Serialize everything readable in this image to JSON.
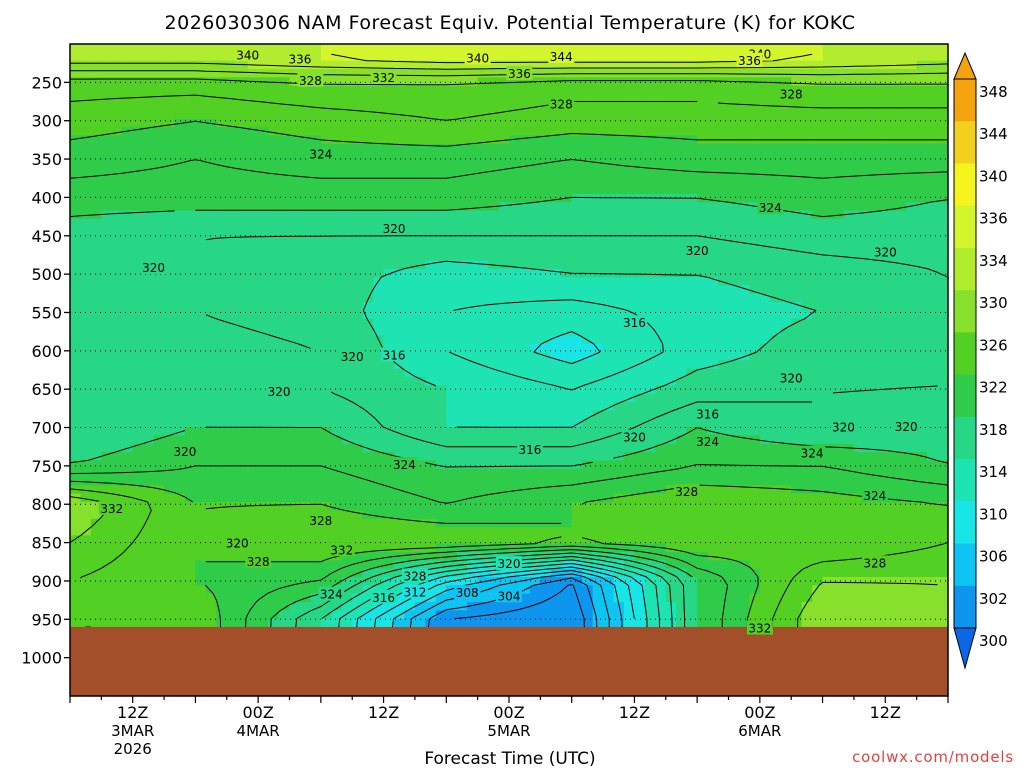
{
  "chart_data": {
    "type": "heatmap",
    "title": "2026030306 NAM Forecast Equiv. Potential Temperature (K) for KOKC",
    "xlabel": "Forecast Time (UTC)",
    "ylabel": "",
    "x_ticks": [
      {
        "hour": 6,
        "line1": "12Z",
        "line2": "3MAR",
        "line3": "2026"
      },
      {
        "hour": 18,
        "line1": "00Z",
        "line2": "4MAR",
        "line3": ""
      },
      {
        "hour": 30,
        "line1": "12Z",
        "line2": "",
        "line3": ""
      },
      {
        "hour": 42,
        "line1": "00Z",
        "line2": "5MAR",
        "line3": ""
      },
      {
        "hour": 54,
        "line1": "12Z",
        "line2": "",
        "line3": ""
      },
      {
        "hour": 66,
        "line1": "00Z",
        "line2": "6MAR",
        "line3": ""
      },
      {
        "hour": 78,
        "line1": "12Z",
        "line2": "",
        "line3": ""
      }
    ],
    "xlim_hours": [
      0,
      84
    ],
    "y_ticks": [
      250,
      300,
      350,
      400,
      450,
      500,
      550,
      600,
      650,
      700,
      750,
      800,
      850,
      900,
      950,
      1000
    ],
    "ylim_hpa": [
      200,
      1050
    ],
    "ground_hpa": 960,
    "colorbar": {
      "labels": [
        348,
        344,
        340,
        336,
        334,
        330,
        326,
        322,
        318,
        314,
        310,
        306,
        302,
        300
      ],
      "colors": [
        "#f5a30d",
        "#f2d020",
        "#f5f51d",
        "#d3f52d",
        "#b1ec2f",
        "#86e02c",
        "#52d023",
        "#2fcc4a",
        "#27d785",
        "#1ee3b3",
        "#18e6e6",
        "#0ec4f2",
        "#0e95ee",
        "#0a68e8"
      ]
    },
    "levels": {
      "pressure_hpa": [
        220,
        250,
        300,
        350,
        400,
        450,
        500,
        550,
        600,
        650,
        700,
        750,
        800,
        850,
        900,
        950
      ],
      "hours": [
        0,
        12,
        24,
        36,
        48,
        60,
        72,
        84
      ],
      "theta_e_K": [
        [
          335,
          335,
          336,
          337,
          337,
          337,
          336,
          335
        ],
        [
          329,
          329,
          330,
          330,
          329,
          329,
          330,
          330
        ],
        [
          327,
          326,
          327,
          328,
          327,
          327,
          327,
          327
        ],
        [
          325,
          324,
          325,
          325,
          324,
          325,
          325,
          325
        ],
        [
          323,
          323,
          323,
          323,
          322,
          322,
          323,
          322
        ],
        [
          321,
          320,
          320,
          320,
          320,
          320,
          321,
          321
        ],
        [
          320,
          320,
          319,
          317,
          318,
          318,
          319,
          320
        ],
        [
          320,
          320,
          319,
          316,
          315,
          317,
          318,
          320
        ],
        [
          320,
          321,
          320,
          316,
          313,
          317,
          319,
          320
        ],
        [
          320,
          322,
          320,
          318,
          316,
          319,
          320,
          320
        ],
        [
          320,
          322,
          322,
          318,
          318,
          322,
          320,
          321
        ],
        [
          322,
          324,
          324,
          322,
          322,
          324,
          324,
          322
        ],
        [
          332,
          326,
          326,
          324,
          326,
          328,
          327,
          326
        ],
        [
          330,
          326,
          328,
          328,
          326,
          328,
          326,
          328
        ],
        [
          328,
          326,
          324,
          312,
          304,
          322,
          330,
          330
        ],
        [
          328,
          328,
          318,
          304,
          302,
          322,
          332,
          330
        ]
      ]
    },
    "contour_labels": [
      {
        "text": "340",
        "hour": 17,
        "hpa": 215
      },
      {
        "text": "336",
        "hour": 22,
        "hpa": 220
      },
      {
        "text": "340",
        "hour": 39,
        "hpa": 219
      },
      {
        "text": "344",
        "hour": 47,
        "hpa": 217
      },
      {
        "text": "340",
        "hour": 66,
        "hpa": 214
      },
      {
        "text": "336",
        "hour": 65,
        "hpa": 222
      },
      {
        "text": "336",
        "hour": 43,
        "hpa": 239
      },
      {
        "text": "332",
        "hour": 30,
        "hpa": 244
      },
      {
        "text": "328",
        "hour": 23,
        "hpa": 248
      },
      {
        "text": "328",
        "hour": 47,
        "hpa": 279
      },
      {
        "text": "328",
        "hour": 69,
        "hpa": 266
      },
      {
        "text": "324",
        "hour": 24,
        "hpa": 344
      },
      {
        "text": "324",
        "hour": 67,
        "hpa": 414
      },
      {
        "text": "320",
        "hour": 31,
        "hpa": 441
      },
      {
        "text": "320",
        "hour": 60,
        "hpa": 470
      },
      {
        "text": "320",
        "hour": 78,
        "hpa": 472
      },
      {
        "text": "320",
        "hour": 8,
        "hpa": 492
      },
      {
        "text": "316",
        "hour": 54,
        "hpa": 564
      },
      {
        "text": "320",
        "hour": 27,
        "hpa": 608
      },
      {
        "text": "316",
        "hour": 31,
        "hpa": 606
      },
      {
        "text": "320",
        "hour": 20,
        "hpa": 654
      },
      {
        "text": "320",
        "hour": 69,
        "hpa": 636
      },
      {
        "text": "316",
        "hour": 61,
        "hpa": 683
      },
      {
        "text": "320",
        "hour": 54,
        "hpa": 713
      },
      {
        "text": "324",
        "hour": 61,
        "hpa": 719
      },
      {
        "text": "320",
        "hour": 74,
        "hpa": 700
      },
      {
        "text": "320",
        "hour": 80,
        "hpa": 699
      },
      {
        "text": "320",
        "hour": 11,
        "hpa": 732
      },
      {
        "text": "316",
        "hour": 44,
        "hpa": 729
      },
      {
        "text": "324",
        "hour": 32,
        "hpa": 749
      },
      {
        "text": "324",
        "hour": 71,
        "hpa": 734
      },
      {
        "text": "324",
        "hour": 77,
        "hpa": 789
      },
      {
        "text": "328",
        "hour": 59,
        "hpa": 784
      },
      {
        "text": "332",
        "hour": 4,
        "hpa": 806
      },
      {
        "text": "328",
        "hour": 24,
        "hpa": 822
      },
      {
        "text": "320",
        "hour": 16,
        "hpa": 851
      },
      {
        "text": "332",
        "hour": 26,
        "hpa": 860
      },
      {
        "text": "328",
        "hour": 18,
        "hpa": 875
      },
      {
        "text": "328",
        "hour": 33,
        "hpa": 894
      },
      {
        "text": "320",
        "hour": 42,
        "hpa": 878
      },
      {
        "text": "328",
        "hour": 77,
        "hpa": 877
      },
      {
        "text": "324",
        "hour": 25,
        "hpa": 918
      },
      {
        "text": "316",
        "hour": 30,
        "hpa": 922
      },
      {
        "text": "312",
        "hour": 33,
        "hpa": 915
      },
      {
        "text": "308",
        "hour": 38,
        "hpa": 916
      },
      {
        "text": "304",
        "hour": 42,
        "hpa": 920
      },
      {
        "text": "332",
        "hour": 66,
        "hpa": 962
      }
    ]
  },
  "credit": "coolwx.com/models"
}
